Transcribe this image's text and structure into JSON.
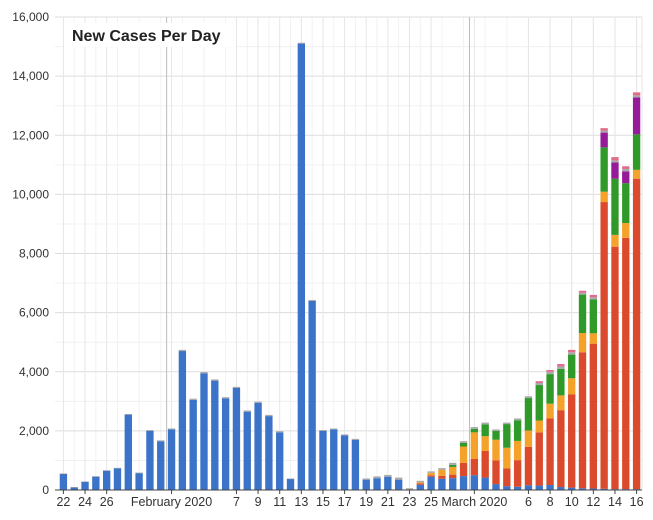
{
  "chart_data": {
    "type": "bar",
    "stacked": true,
    "title": "New Cases Per Day",
    "xlabel": "",
    "ylabel": "",
    "ylim": [
      0,
      16000
    ],
    "yticks": [
      "0",
      "2,000",
      "4,000",
      "6,000",
      "8,000",
      "10,000",
      "12,000",
      "14,000",
      "16,000"
    ],
    "grid": true,
    "legend": "none",
    "colors": [
      "#3b73c8",
      "#dc4a2d",
      "#f5a22b",
      "#2f9a2a",
      "#951b99",
      "#a9a9a9",
      "#e06c8a"
    ],
    "x_tick_labels": [
      {
        "label": "22",
        "index": 0
      },
      {
        "label": "24",
        "index": 2
      },
      {
        "label": "26",
        "index": 4
      },
      {
        "label": "February 2020",
        "index": 10
      },
      {
        "label": "7",
        "index": 16
      },
      {
        "label": "9",
        "index": 18
      },
      {
        "label": "11",
        "index": 20
      },
      {
        "label": "13",
        "index": 22
      },
      {
        "label": "15",
        "index": 24
      },
      {
        "label": "17",
        "index": 26
      },
      {
        "label": "19",
        "index": 28
      },
      {
        "label": "21",
        "index": 30
      },
      {
        "label": "23",
        "index": 32
      },
      {
        "label": "25",
        "index": 34
      },
      {
        "label": "March 2020",
        "index": 38
      },
      {
        "label": "6",
        "index": 43
      },
      {
        "label": "8",
        "index": 45
      },
      {
        "label": "10",
        "index": 47
      },
      {
        "label": "12",
        "index": 49
      },
      {
        "label": "14",
        "index": 51
      },
      {
        "label": "16",
        "index": 53
      }
    ],
    "month_lines": [
      10,
      38
    ],
    "series": [
      {
        "values": [
          540,
          90,
          280,
          450,
          650,
          730,
          2550,
          570,
          2000,
          1650,
          2050,
          4700,
          3050,
          3950,
          3700,
          3100,
          3450,
          2650,
          2950,
          2500,
          1950,
          370,
          15100,
          6400,
          2000,
          2050,
          1850,
          1700,
          350,
          400,
          450,
          350,
          0,
          180,
          450,
          380,
          400,
          470,
          500,
          420,
          200,
          130,
          110,
          160,
          150,
          170,
          100,
          80,
          60,
          50,
          40,
          30,
          30,
          30
        ]
      },
      {
        "values": [
          0,
          0,
          0,
          0,
          0,
          0,
          0,
          0,
          0,
          0,
          0,
          0,
          0,
          0,
          0,
          0,
          0,
          0,
          0,
          0,
          0,
          0,
          0,
          0,
          0,
          0,
          0,
          0,
          0,
          0,
          0,
          0,
          0,
          40,
          50,
          100,
          120,
          450,
          550,
          900,
          800,
          600,
          900,
          1300,
          1800,
          2250,
          2600,
          3150,
          4600,
          4900,
          9700,
          8200,
          8500,
          10500
        ]
      },
      {
        "values": [
          0,
          0,
          0,
          0,
          0,
          0,
          0,
          0,
          0,
          0,
          0,
          0,
          0,
          0,
          0,
          0,
          0,
          0,
          0,
          0,
          0,
          0,
          0,
          0,
          0,
          0,
          0,
          0,
          0,
          0,
          0,
          0,
          0,
          40,
          80,
          200,
          260,
          550,
          900,
          500,
          700,
          700,
          650,
          550,
          400,
          500,
          500,
          550,
          650,
          350,
          350,
          400,
          500,
          300
        ]
      },
      {
        "values": [
          0,
          0,
          0,
          0,
          0,
          0,
          0,
          0,
          0,
          0,
          0,
          0,
          0,
          0,
          0,
          0,
          0,
          0,
          0,
          0,
          0,
          0,
          0,
          0,
          0,
          0,
          0,
          0,
          0,
          0,
          0,
          0,
          0,
          0,
          0,
          0,
          70,
          120,
          120,
          400,
          300,
          800,
          700,
          1100,
          1200,
          1000,
          900,
          800,
          1300,
          1150,
          1500,
          1900,
          1350,
          1200
        ]
      },
      {
        "values": [
          0,
          0,
          0,
          0,
          0,
          0,
          0,
          0,
          0,
          0,
          0,
          0,
          0,
          0,
          0,
          0,
          0,
          0,
          0,
          0,
          0,
          0,
          0,
          0,
          0,
          0,
          0,
          0,
          0,
          0,
          0,
          0,
          0,
          0,
          0,
          0,
          0,
          0,
          0,
          0,
          0,
          0,
          0,
          0,
          0,
          0,
          0,
          0,
          0,
          0,
          500,
          550,
          400,
          1250
        ]
      },
      {
        "values": [
          20,
          10,
          10,
          20,
          20,
          20,
          20,
          20,
          30,
          30,
          30,
          40,
          40,
          40,
          40,
          40,
          40,
          40,
          40,
          40,
          40,
          20,
          30,
          30,
          30,
          30,
          30,
          30,
          40,
          60,
          60,
          70,
          60,
          50,
          50,
          60,
          70,
          60,
          60,
          60,
          50,
          50,
          60,
          60,
          70,
          80,
          80,
          80,
          60,
          70,
          70,
          70,
          80,
          70
        ]
      },
      {
        "values": [
          0,
          0,
          0,
          0,
          0,
          0,
          0,
          0,
          0,
          0,
          0,
          0,
          0,
          0,
          0,
          0,
          0,
          0,
          0,
          0,
          0,
          0,
          0,
          0,
          0,
          0,
          0,
          0,
          0,
          0,
          0,
          0,
          0,
          0,
          0,
          0,
          0,
          0,
          0,
          0,
          0,
          0,
          0,
          0,
          60,
          60,
          80,
          80,
          70,
          80,
          80,
          110,
          90,
          100
        ]
      }
    ]
  }
}
